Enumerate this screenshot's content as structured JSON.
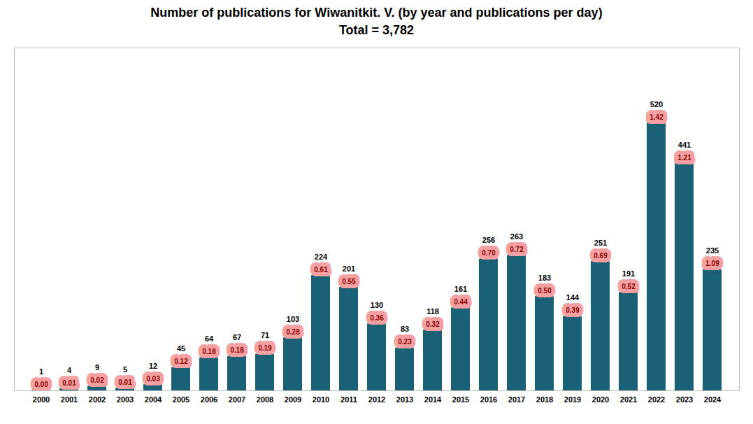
{
  "chart_data": {
    "type": "bar",
    "title": "Number of publications for Wiwanitkit. V. (by year and publications per day)",
    "subtitle": "Total = 3,782",
    "categories": [
      "2000",
      "2001",
      "2002",
      "2003",
      "2004",
      "2005",
      "2006",
      "2007",
      "2008",
      "2009",
      "2010",
      "2011",
      "2012",
      "2013",
      "2014",
      "2015",
      "2016",
      "2017",
      "2018",
      "2019",
      "2020",
      "2021",
      "2022",
      "2023",
      "2024"
    ],
    "values": [
      1,
      4,
      9,
      5,
      12,
      45,
      64,
      67,
      71,
      103,
      224,
      201,
      130,
      83,
      118,
      161,
      256,
      263,
      183,
      144,
      251,
      191,
      520,
      441,
      235
    ],
    "per_day": [
      0.0,
      0.01,
      0.02,
      0.01,
      0.03,
      0.12,
      0.18,
      0.18,
      0.19,
      0.28,
      0.61,
      0.55,
      0.36,
      0.23,
      0.32,
      0.44,
      0.7,
      0.72,
      0.5,
      0.39,
      0.69,
      0.52,
      1.42,
      1.21,
      1.09
    ],
    "color": "#1a6175",
    "ylim": [
      0,
      665.6
    ],
    "data_labels": true,
    "tick_labels": "x",
    "grid": false
  }
}
